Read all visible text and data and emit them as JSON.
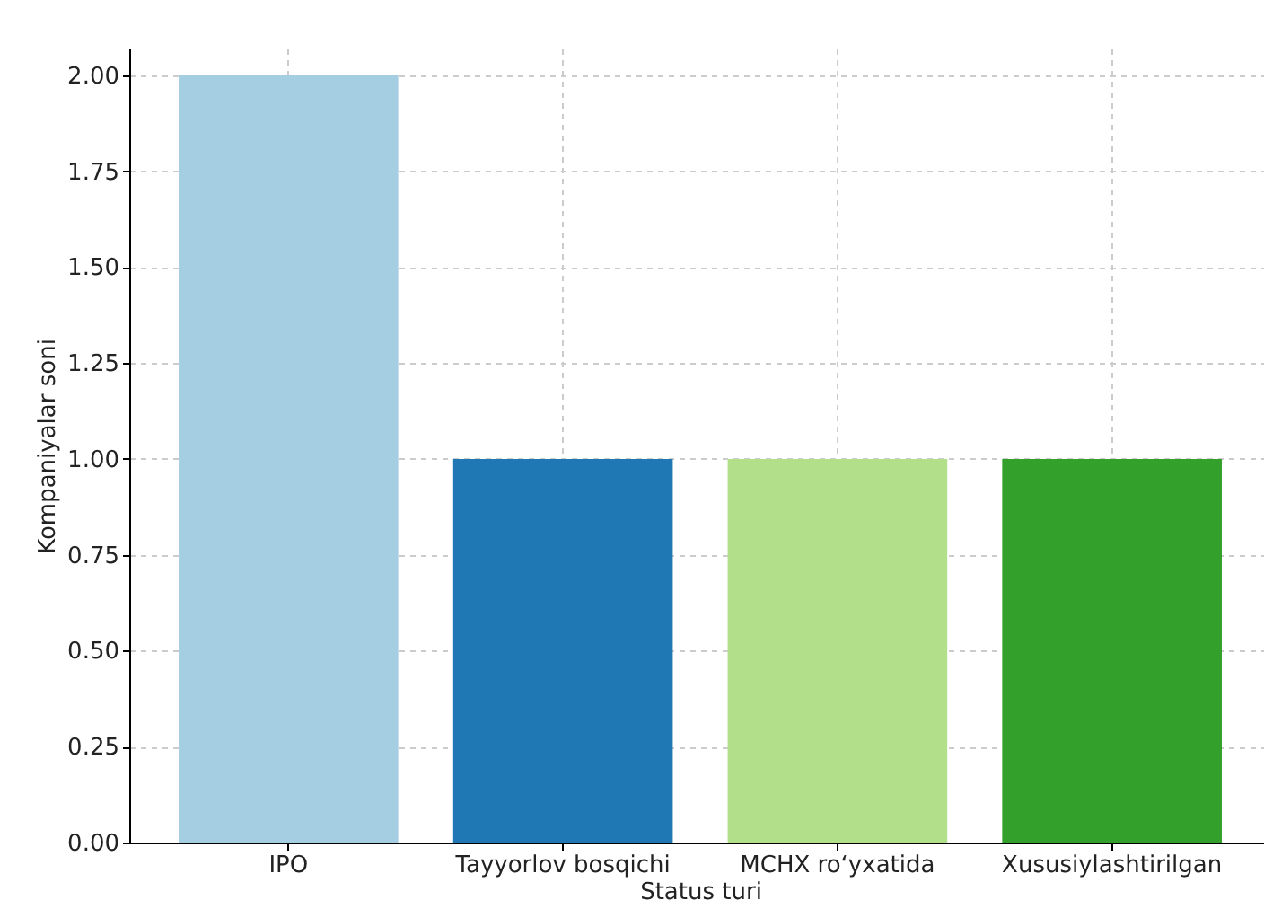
{
  "chart_data": {
    "type": "bar",
    "xlabel": "Status turi",
    "ylabel": "Kompaniyalar soni",
    "categories": [
      "IPO",
      "Tayyorlov bosqichi",
      "MCHX ro‘yxatida",
      "Xususiylashtirilgan"
    ],
    "values": [
      2,
      1,
      1,
      1
    ],
    "colors": [
      "#a6cee3",
      "#1f78b4",
      "#b2df8a",
      "#33a02c"
    ],
    "ylim": [
      0,
      2.07
    ],
    "yticks": [
      {
        "value": 0,
        "label": "0.00"
      },
      {
        "value": 0.25,
        "label": "0.25"
      },
      {
        "value": 0.5,
        "label": "0.50"
      },
      {
        "value": 0.75,
        "label": "0.75"
      },
      {
        "value": 1,
        "label": "1.00"
      },
      {
        "value": 1.25,
        "label": "1.25"
      },
      {
        "value": 1.5,
        "label": "1.50"
      },
      {
        "value": 1.75,
        "label": "1.75"
      },
      {
        "value": 2,
        "label": "2.00"
      }
    ],
    "grid": true
  }
}
